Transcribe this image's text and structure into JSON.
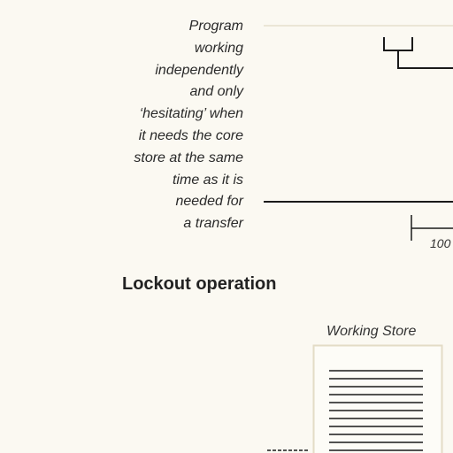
{
  "timing_diagram": {
    "caption_lines": [
      "Program",
      "working",
      "independently",
      "and only",
      "‘hesitating’ when",
      "it needs the core",
      "store at the same",
      "time as it is",
      "needed for",
      "a transfer"
    ],
    "scale_label": "100"
  },
  "section": {
    "heading": "Lockout operation"
  },
  "working_store": {
    "label": "Working Store"
  }
}
